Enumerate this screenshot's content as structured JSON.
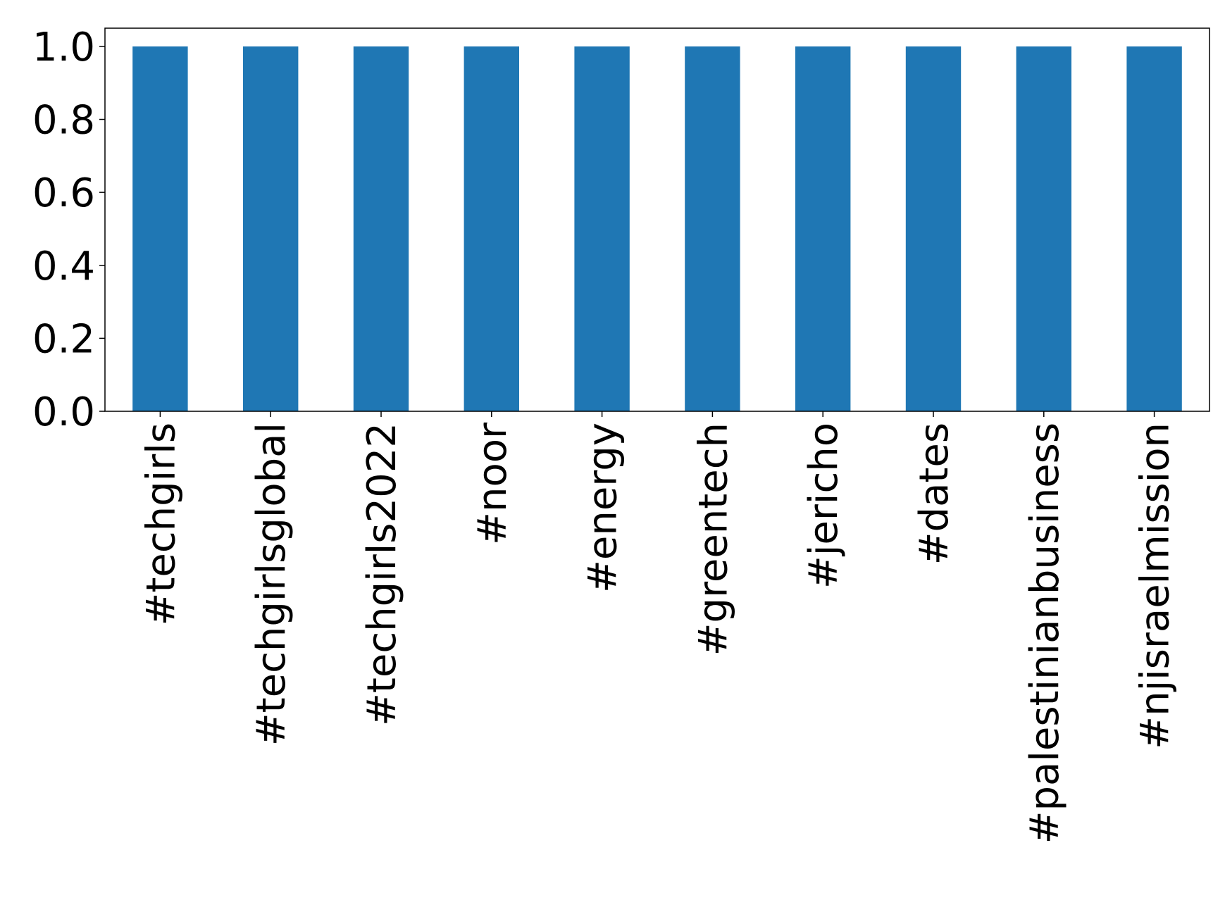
{
  "chart_data": {
    "type": "bar",
    "categories": [
      "#techgirls",
      "#techgirlsglobal",
      "#techgirls2022",
      "#noor",
      "#energy",
      "#greentech",
      "#jericho",
      "#dates",
      "#palestinianbusiness",
      "#njisraelmission"
    ],
    "values": [
      1,
      1,
      1,
      1,
      1,
      1,
      1,
      1,
      1,
      1
    ],
    "color": "#1f77b4",
    "ylim": [
      0,
      1.05
    ],
    "yticks": [
      {
        "value": 0,
        "label": "0.0"
      },
      0.2,
      0.4,
      0.6,
      0.8,
      {
        "value": 1,
        "label": "1.0"
      }
    ],
    "grid": false
  }
}
